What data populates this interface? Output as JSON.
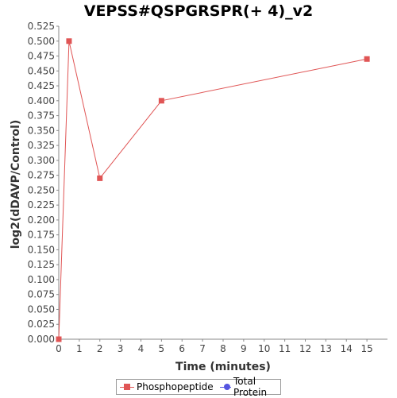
{
  "chart_data": {
    "type": "line",
    "title": "VEPSS#QSPGRSPR(+ 4)_v2",
    "xlabel": "Time (minutes)",
    "ylabel": "log2(dDAVP/Control)",
    "xlim": [
      0,
      16
    ],
    "ylim": [
      0,
      0.525
    ],
    "xticks": [
      "0",
      "1",
      "2",
      "3",
      "4",
      "5",
      "6",
      "7",
      "8",
      "9",
      "10",
      "11",
      "12",
      "13",
      "14",
      "15"
    ],
    "yticks": [
      "0.000",
      "0.025",
      "0.050",
      "0.075",
      "0.100",
      "0.125",
      "0.150",
      "0.175",
      "0.200",
      "0.225",
      "0.250",
      "0.275",
      "0.300",
      "0.325",
      "0.350",
      "0.375",
      "0.400",
      "0.425",
      "0.450",
      "0.475",
      "0.500",
      "0.525"
    ],
    "grid": false,
    "legend_position": "bottom-center",
    "series": [
      {
        "name": "Phosphopeptide",
        "color": "#e05555",
        "marker": "square",
        "x": [
          0,
          0.5,
          2,
          5,
          15
        ],
        "y": [
          0.0,
          0.5,
          0.27,
          0.4,
          0.47
        ]
      },
      {
        "name": "Total Protein",
        "color": "#5555e0",
        "marker": "circle",
        "x": [],
        "y": []
      }
    ]
  }
}
